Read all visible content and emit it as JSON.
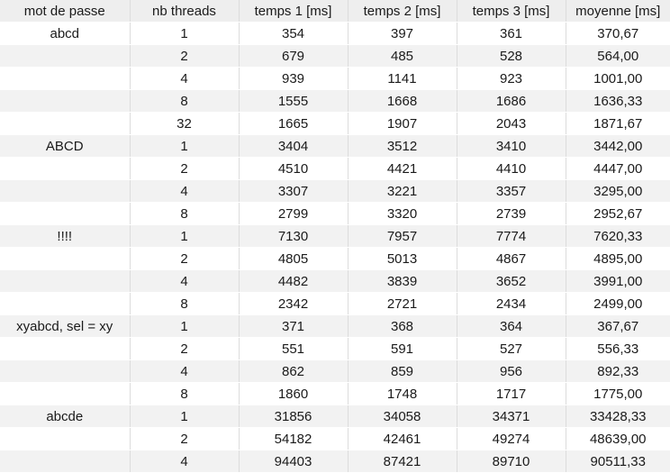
{
  "table": {
    "headers": [
      "mot de passe",
      "nb threads",
      "temps 1 [ms]",
      "temps 2 [ms]",
      "temps 3 [ms]",
      "moyenne [ms]"
    ],
    "rows": [
      [
        "abcd",
        "1",
        "354",
        "397",
        "361",
        "370,67"
      ],
      [
        "",
        "2",
        "679",
        "485",
        "528",
        "564,00"
      ],
      [
        "",
        "4",
        "939",
        "1141",
        "923",
        "1001,00"
      ],
      [
        "",
        "8",
        "1555",
        "1668",
        "1686",
        "1636,33"
      ],
      [
        "",
        "32",
        "1665",
        "1907",
        "2043",
        "1871,67"
      ],
      [
        "ABCD",
        "1",
        "3404",
        "3512",
        "3410",
        "3442,00"
      ],
      [
        "",
        "2",
        "4510",
        "4421",
        "4410",
        "4447,00"
      ],
      [
        "",
        "4",
        "3307",
        "3221",
        "3357",
        "3295,00"
      ],
      [
        "",
        "8",
        "2799",
        "3320",
        "2739",
        "2952,67"
      ],
      [
        "!!!!",
        "1",
        "7130",
        "7957",
        "7774",
        "7620,33"
      ],
      [
        "",
        "2",
        "4805",
        "5013",
        "4867",
        "4895,00"
      ],
      [
        "",
        "4",
        "4482",
        "3839",
        "3652",
        "3991,00"
      ],
      [
        "",
        "8",
        "2342",
        "2721",
        "2434",
        "2499,00"
      ],
      [
        "xyabcd, sel = xy",
        "1",
        "371",
        "368",
        "364",
        "367,67"
      ],
      [
        "",
        "2",
        "551",
        "591",
        "527",
        "556,33"
      ],
      [
        "",
        "4",
        "862",
        "859",
        "956",
        "892,33"
      ],
      [
        "",
        "8",
        "1860",
        "1748",
        "1717",
        "1775,00"
      ],
      [
        "abcde",
        "1",
        "31856",
        "34058",
        "34371",
        "33428,33"
      ],
      [
        "",
        "2",
        "54182",
        "42461",
        "49274",
        "48639,00"
      ],
      [
        "",
        "4",
        "94403",
        "87421",
        "89710",
        "90511,33"
      ]
    ]
  }
}
